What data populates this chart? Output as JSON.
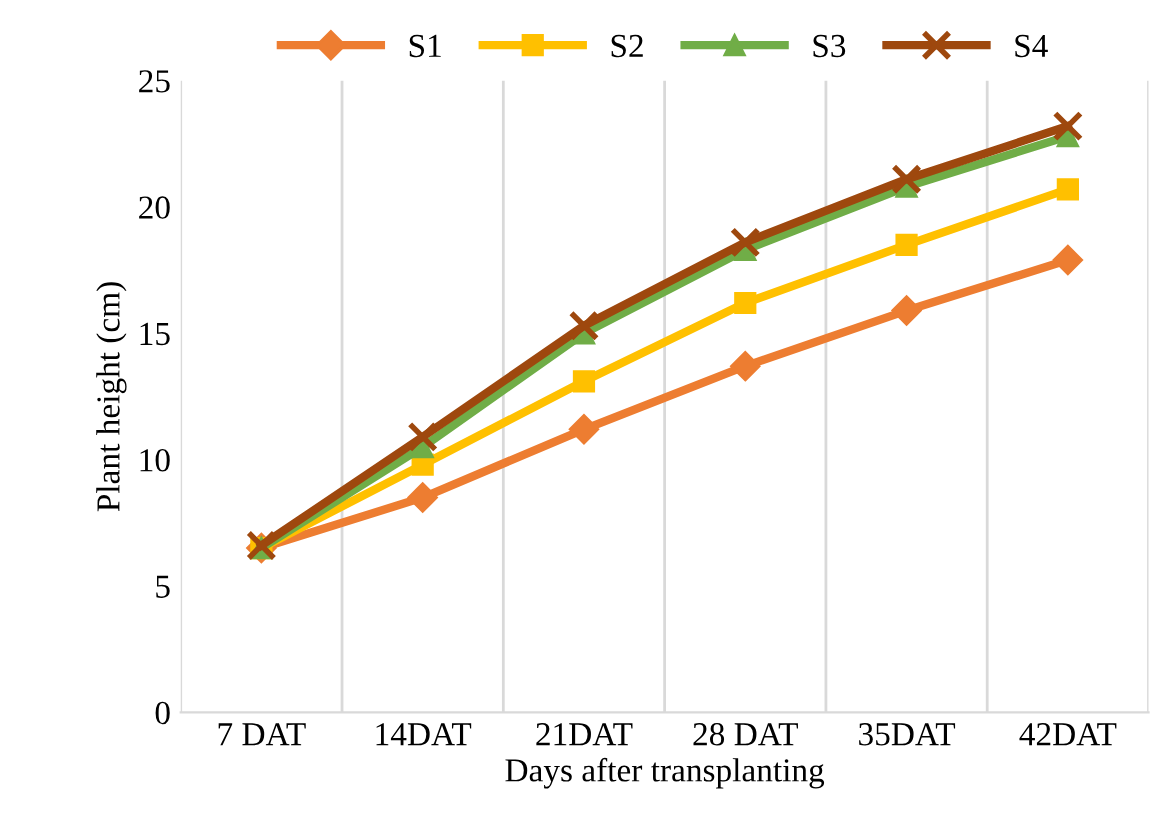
{
  "chart_data": {
    "type": "line",
    "xlabel": "Days after transplanting",
    "ylabel": "Plant height (cm)",
    "categories": [
      "7 DAT",
      "14DAT",
      "21DAT",
      "28 DAT",
      "35DAT",
      "42DAT"
    ],
    "series": [
      {
        "name": "S1",
        "color": "#ed7d31",
        "marker": "diamond",
        "values": [
          6.5,
          8.5,
          11.2,
          13.7,
          15.9,
          17.9
        ]
      },
      {
        "name": "S2",
        "color": "#ffc000",
        "marker": "square",
        "values": [
          6.5,
          9.8,
          13.1,
          16.2,
          18.5,
          20.7
        ]
      },
      {
        "name": "S3",
        "color": "#70ad47",
        "marker": "triangle",
        "values": [
          6.5,
          10.5,
          15.0,
          18.3,
          20.8,
          22.8
        ]
      },
      {
        "name": "S4",
        "color": "#9e480e",
        "marker": "cross",
        "values": [
          6.6,
          10.9,
          15.3,
          18.6,
          21.1,
          23.2
        ]
      }
    ],
    "ylim": [
      0,
      25
    ],
    "yticks": [
      0,
      5,
      10,
      15,
      20,
      25
    ],
    "grid": "x",
    "legend": "top",
    "line_style": "solid"
  }
}
